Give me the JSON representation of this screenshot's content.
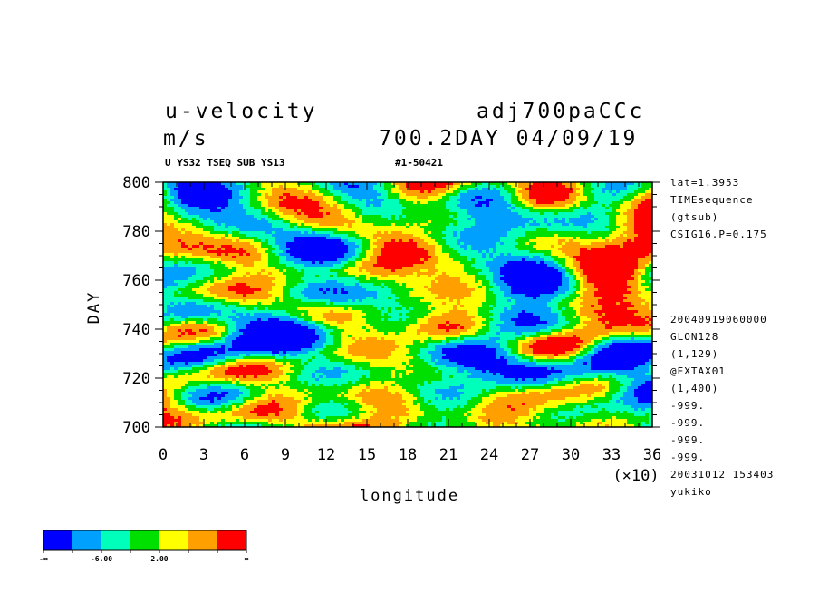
{
  "header": {
    "var_name": "u-velocity",
    "run_name": "adj700paCCc",
    "units": "m/s",
    "time_info": "700.2DAY 04/09/19",
    "subtitle_left": "U YS32 TSEQ SUB YS13",
    "subtitle_right": "#1-50421"
  },
  "side_info": {
    "top": [
      "lat=1.3953",
      "TIMEsequence",
      "(gtsub)",
      "CSIG16.P=0.175"
    ],
    "bottom": [
      "20040919060000",
      "GLON128",
      "(1,129)",
      "@EXTAX01",
      "(1,400)",
      "-999.",
      "-999.",
      "-999.",
      "-999.",
      "20031012 153403",
      "yukiko"
    ]
  },
  "chart_data": {
    "type": "heatmap",
    "xlabel": "longitude",
    "ylabel": "DAY",
    "x_multiplier": "(×10)",
    "x_ticks": [
      0,
      3,
      6,
      9,
      12,
      15,
      18,
      21,
      24,
      27,
      30,
      33,
      36
    ],
    "y_ticks": [
      700,
      720,
      740,
      760,
      780,
      800
    ],
    "xlim": [
      0,
      36
    ],
    "ylim": [
      700,
      800
    ],
    "levels_labels": [
      "-∞",
      "-6.00",
      "2.00",
      "∞"
    ],
    "colors": [
      "#0000ff",
      "#00a0ff",
      "#00ffbb",
      "#00e000",
      "#ffff00",
      "#ffa000",
      "#ff0000"
    ]
  }
}
